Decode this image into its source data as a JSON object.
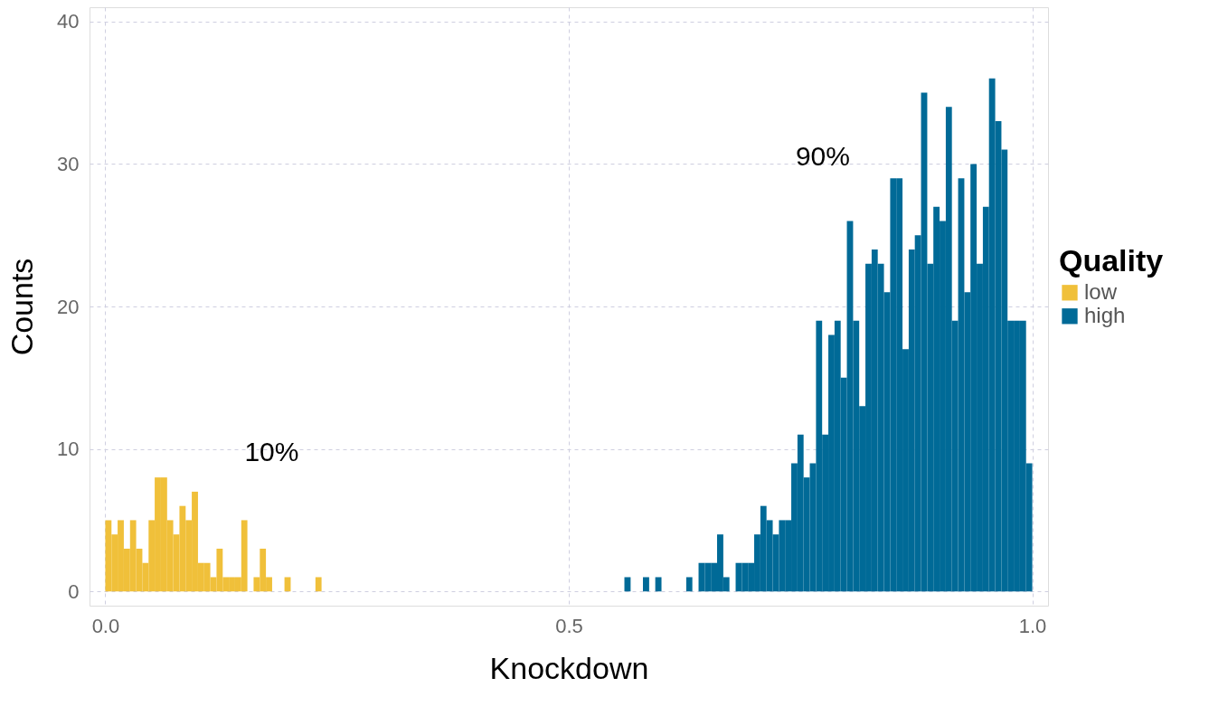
{
  "chart_data": {
    "type": "histogram",
    "xlabel": "Knockdown",
    "ylabel": "Counts",
    "legend_title": "Quality",
    "bins": [
      0,
      0.0067,
      0.0133,
      0.02,
      0.0267,
      0.0333,
      0.04,
      0.0467,
      0.0533,
      0.06,
      0.0667,
      0.0733,
      0.08,
      0.0867,
      0.0933,
      0.1,
      0.1067,
      0.1133,
      0.12,
      0.1267,
      0.1333,
      0.14,
      0.1467,
      0.1533,
      0.16,
      0.1667,
      0.1733,
      0.18,
      0.1867,
      0.1933,
      0.2,
      0.2067,
      0.2133,
      0.22,
      0.2267,
      0.2333,
      0.24,
      0.2467,
      0.2533,
      0.26,
      0.2667,
      0.2733,
      0.28,
      0.2867,
      0.2933,
      0.3,
      0.3067,
      0.3133,
      0.32,
      0.3267,
      0.3333,
      0.34,
      0.3467,
      0.3533,
      0.36,
      0.3667,
      0.3733,
      0.38,
      0.3867,
      0.3933,
      0.4,
      0.4067,
      0.4133,
      0.42,
      0.4267,
      0.4333,
      0.44,
      0.4467,
      0.4533,
      0.46,
      0.4667,
      0.4733,
      0.48,
      0.4867,
      0.4933,
      0.5,
      0.5067,
      0.5133,
      0.52,
      0.5267,
      0.5333,
      0.54,
      0.5467,
      0.5533,
      0.56,
      0.5667,
      0.5733,
      0.58,
      0.5867,
      0.5933,
      0.6,
      0.6067,
      0.6133,
      0.62,
      0.6267,
      0.6333,
      0.64,
      0.6467,
      0.6533,
      0.66,
      0.6667,
      0.6733,
      0.68,
      0.6867,
      0.6933,
      0.7,
      0.7067,
      0.7133,
      0.72,
      0.7267,
      0.7333,
      0.74,
      0.7467,
      0.7533,
      0.76,
      0.7667,
      0.7733,
      0.78,
      0.7867,
      0.7933,
      0.8,
      0.8067,
      0.8133,
      0.82,
      0.8267,
      0.8333,
      0.84,
      0.8467,
      0.8533,
      0.86,
      0.8667,
      0.8733,
      0.88,
      0.8867,
      0.8933,
      0.9,
      0.9067,
      0.9133,
      0.92,
      0.9267,
      0.9333,
      0.94,
      0.9467,
      0.9533,
      0.96,
      0.9667,
      0.9733,
      0.98,
      0.9867,
      0.9933,
      1
    ],
    "series": [
      {
        "name": "low",
        "color": "#f0c03a",
        "values": [
          5,
          4,
          5,
          3,
          5,
          3,
          2,
          5,
          8,
          8,
          5,
          4,
          6,
          5,
          7,
          2,
          2,
          1,
          3,
          1,
          1,
          1,
          5,
          0,
          1,
          3,
          1,
          0,
          0,
          1,
          0,
          0,
          0,
          0,
          1,
          0,
          0,
          0,
          0,
          0,
          0,
          0,
          0,
          0,
          0,
          0,
          0,
          0,
          0,
          0,
          0,
          0,
          0,
          0,
          0,
          0,
          0,
          0,
          0,
          0,
          0,
          0,
          0,
          0,
          0,
          0,
          0,
          0,
          0,
          0,
          0,
          0,
          0,
          0,
          0,
          0,
          0,
          0,
          0,
          0,
          0,
          0,
          0,
          0,
          0,
          0,
          0,
          0,
          0,
          0,
          0,
          0,
          0,
          0,
          0,
          0,
          0,
          0,
          0,
          0,
          0,
          0,
          0,
          0,
          0,
          0,
          0,
          0,
          0,
          0,
          0,
          0,
          0,
          0,
          0,
          0,
          0,
          0,
          0,
          0,
          0,
          0,
          0,
          0,
          0,
          0,
          0,
          0,
          0,
          0,
          0,
          0,
          0,
          0,
          0,
          0,
          0,
          0,
          0,
          0,
          0,
          0,
          0,
          0,
          0,
          0,
          0,
          0,
          0,
          0
        ]
      },
      {
        "name": "high",
        "color": "#006a97",
        "values": [
          0,
          0,
          0,
          0,
          0,
          0,
          0,
          0,
          0,
          0,
          0,
          0,
          0,
          0,
          0,
          0,
          0,
          0,
          0,
          0,
          0,
          0,
          0,
          0,
          0,
          0,
          0,
          0,
          0,
          0,
          0,
          0,
          0,
          0,
          0,
          0,
          0,
          0,
          0,
          0,
          0,
          0,
          0,
          0,
          0,
          0,
          0,
          0,
          0,
          0,
          0,
          0,
          0,
          0,
          0,
          0,
          0,
          0,
          0,
          0,
          0,
          0,
          0,
          0,
          0,
          0,
          0,
          0,
          0,
          0,
          0,
          0,
          0,
          0,
          0,
          0,
          0,
          0,
          0,
          0,
          0,
          0,
          0,
          0,
          1,
          0,
          0,
          1,
          0,
          1,
          0,
          0,
          0,
          0,
          1,
          0,
          2,
          2,
          2,
          4,
          1,
          0,
          2,
          2,
          2,
          4,
          6,
          5,
          4,
          5,
          5,
          9,
          11,
          8,
          9,
          19,
          11,
          18,
          19,
          15,
          26,
          19,
          13,
          23,
          24,
          23,
          21,
          29,
          29,
          17,
          24,
          25,
          35,
          23,
          27,
          26,
          34,
          19,
          29,
          21,
          30,
          23,
          27,
          36,
          33,
          31,
          19,
          19,
          19,
          9
        ]
      }
    ],
    "annotations": [
      "10%",
      "90%"
    ],
    "xlim": [
      -0.017,
      1.017
    ],
    "xticks": [
      {
        "value": 0,
        "label": "0.0"
      },
      {
        "value": 0.5,
        "label": "0.5"
      },
      {
        "value": 1,
        "label": "1.0"
      }
    ],
    "ylim": [
      -1,
      41
    ],
    "yticks": [
      0,
      10,
      20,
      30,
      40
    ],
    "grid": true,
    "legend": "right"
  }
}
